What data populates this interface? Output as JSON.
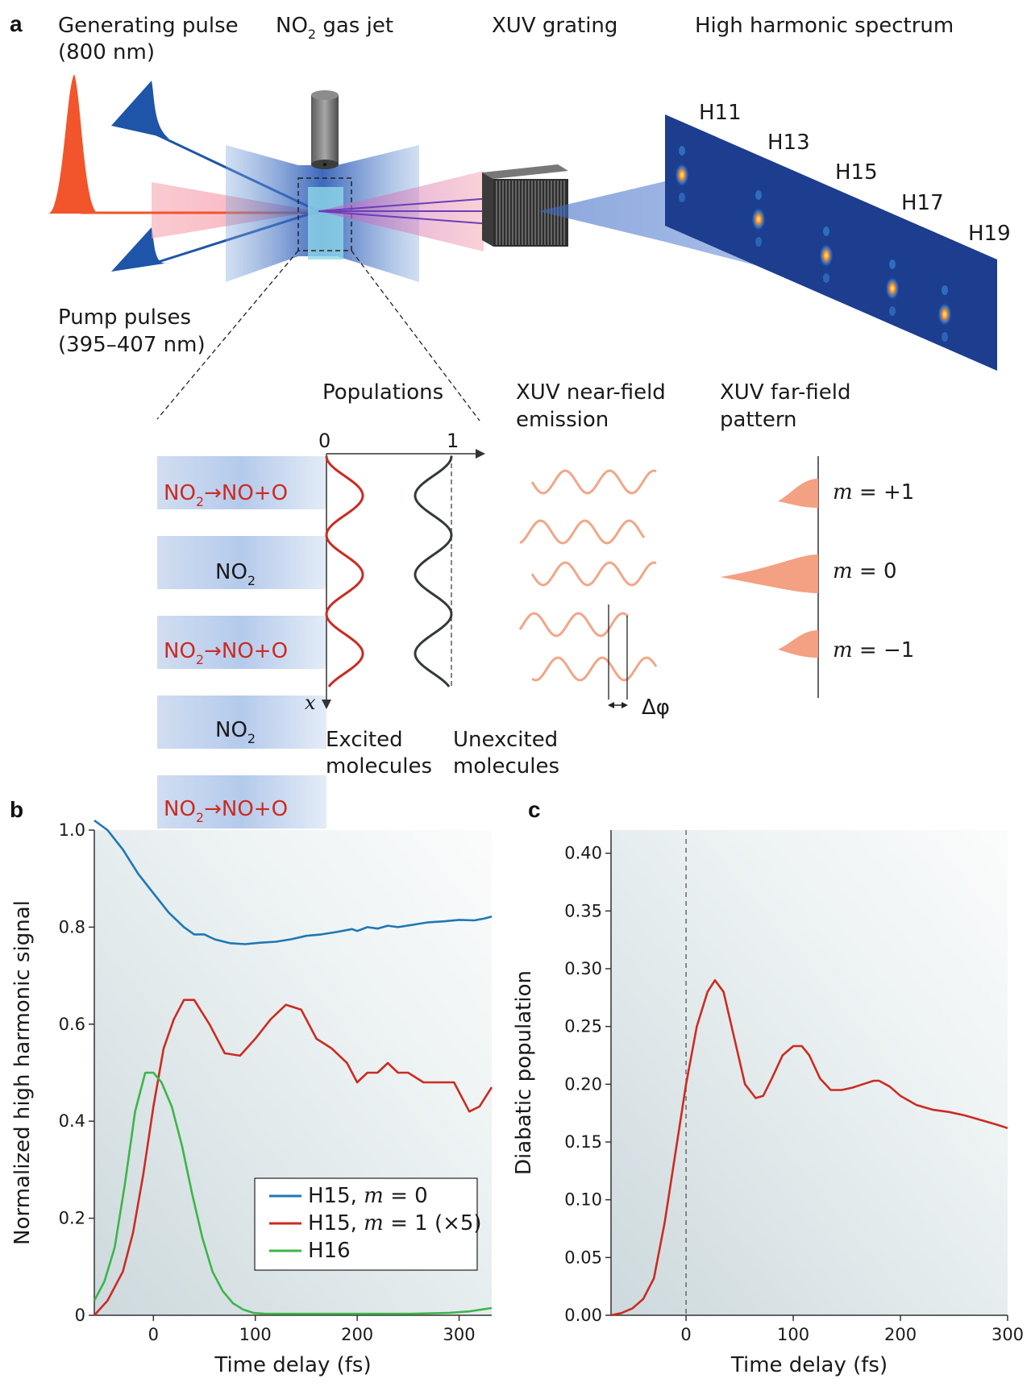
{
  "panel_a": {
    "label": "a",
    "header": {
      "generating_pulse": "Generating pulse",
      "generating_wavelength": "(800 nm)",
      "gas_jet": "NO",
      "gas_jet_sub": "2",
      "gas_jet_rest": " gas jet",
      "grating": "XUV grating",
      "spectrum": "High harmonic spectrum"
    },
    "pump": {
      "label": "Pump pulses",
      "wavelength": "(395–407 nm)"
    },
    "harmonics": [
      "H11",
      "H13",
      "H15",
      "H17",
      "H19"
    ],
    "inset": {
      "populations_title": "Populations",
      "axis_min": "0",
      "axis_max": "1",
      "x_axis": "x",
      "rows": [
        {
          "text": "NO",
          "sub": "2",
          "rest": "→NO+O",
          "excited": true
        },
        {
          "text": "NO",
          "sub": "2",
          "rest": "",
          "excited": false
        },
        {
          "text": "NO",
          "sub": "2",
          "rest": "→NO+O",
          "excited": true
        },
        {
          "text": "NO",
          "sub": "2",
          "rest": "",
          "excited": false
        },
        {
          "text": "NO",
          "sub": "2",
          "rest": "→NO+O",
          "excited": true
        }
      ],
      "excited_label": [
        "Excited",
        "molecules"
      ],
      "unexcited_label": [
        "Unexcited",
        "molecules"
      ],
      "near_field_title": [
        "XUV near-field",
        "emission"
      ],
      "phase_label": "Δφ",
      "far_field_title": [
        "XUV far-field",
        "pattern"
      ],
      "orders": [
        "m = +1",
        "m = 0",
        "m = −1"
      ]
    },
    "colors": {
      "excited": "#cc2b22",
      "unexcited": "#333a3a",
      "wave": "#f2a688",
      "jet_blue": "#1e4fa8",
      "pulse": "#f2552b"
    }
  },
  "chart_data": [
    {
      "panel": "b",
      "type": "line",
      "xlabel": "Time delay (fs)",
      "ylabel": "Normalized high harmonic signal",
      "xlim": [
        -58,
        332
      ],
      "ylim": [
        0,
        1.0
      ],
      "xticks": [
        0,
        100,
        200,
        300
      ],
      "yticks": [
        0,
        0.2,
        0.4,
        0.6,
        0.8,
        1.0
      ],
      "xtick_labels": [
        "0",
        "100",
        "200",
        "300"
      ],
      "ytick_labels": [
        "0",
        "0.2",
        "0.4",
        "0.6",
        "0.8",
        "1.0"
      ],
      "legend_position": "bottom-right",
      "series": [
        {
          "name": "H15, m = 0",
          "color": "#1f77b4",
          "x": [
            -58,
            -45,
            -30,
            -15,
            0,
            15,
            30,
            40,
            50,
            60,
            75,
            90,
            105,
            120,
            135,
            150,
            165,
            180,
            195,
            200,
            210,
            220,
            230,
            240,
            255,
            270,
            285,
            300,
            315,
            325,
            332
          ],
          "y": [
            1.02,
            1.0,
            0.96,
            0.91,
            0.87,
            0.83,
            0.8,
            0.785,
            0.785,
            0.775,
            0.767,
            0.765,
            0.768,
            0.77,
            0.775,
            0.782,
            0.785,
            0.79,
            0.796,
            0.792,
            0.8,
            0.797,
            0.803,
            0.8,
            0.805,
            0.81,
            0.812,
            0.815,
            0.814,
            0.818,
            0.822
          ]
        },
        {
          "name": "H15, m = 1 (×5)",
          "color": "#cc2b22",
          "x": [
            -58,
            -45,
            -30,
            -20,
            -10,
            0,
            10,
            20,
            30,
            40,
            55,
            70,
            85,
            100,
            115,
            130,
            145,
            160,
            175,
            190,
            200,
            210,
            220,
            230,
            240,
            250,
            265,
            280,
            295,
            310,
            320,
            332
          ],
          "y": [
            0,
            0.03,
            0.09,
            0.17,
            0.29,
            0.43,
            0.55,
            0.61,
            0.65,
            0.65,
            0.6,
            0.54,
            0.535,
            0.57,
            0.61,
            0.64,
            0.63,
            0.57,
            0.55,
            0.52,
            0.48,
            0.5,
            0.5,
            0.52,
            0.5,
            0.5,
            0.48,
            0.48,
            0.48,
            0.42,
            0.43,
            0.47
          ]
        },
        {
          "name": "H16",
          "color": "#3cb54a",
          "x": [
            -58,
            -48,
            -38,
            -28,
            -18,
            -8,
            0,
            8,
            18,
            28,
            38,
            48,
            58,
            68,
            78,
            88,
            98,
            110,
            150,
            200,
            250,
            290,
            310,
            332
          ],
          "y": [
            0.03,
            0.07,
            0.14,
            0.27,
            0.42,
            0.5,
            0.5,
            0.48,
            0.43,
            0.35,
            0.25,
            0.16,
            0.09,
            0.05,
            0.025,
            0.012,
            0.005,
            0.003,
            0.003,
            0.003,
            0.003,
            0.005,
            0.008,
            0.015
          ]
        }
      ],
      "legend_labels": [
        {
          "pre": "H15, ",
          "it": "m",
          "post": " = 0"
        },
        {
          "pre": "H15, ",
          "it": "m",
          "post": " = 1 (×5)"
        },
        {
          "pre": "H16",
          "it": "",
          "post": ""
        }
      ]
    },
    {
      "panel": "c",
      "type": "line",
      "xlabel": "Time delay (fs)",
      "ylabel": "Diabatic population",
      "xlim": [
        -70,
        300
      ],
      "ylim": [
        0,
        0.42
      ],
      "xticks": [
        0,
        100,
        200,
        300
      ],
      "yticks": [
        0,
        0.05,
        0.1,
        0.15,
        0.2,
        0.25,
        0.3,
        0.35,
        0.4
      ],
      "xtick_labels": [
        "0",
        "100",
        "200",
        "300"
      ],
      "ytick_labels": [
        "0.00",
        "0.05",
        "0.10",
        "0.15",
        "0.20",
        "0.25",
        "0.30",
        "0.35",
        "0.40"
      ],
      "vline_x": 0,
      "series": [
        {
          "color": "#cc2b22",
          "x": [
            -70,
            -60,
            -50,
            -40,
            -30,
            -20,
            -10,
            0,
            10,
            20,
            27,
            35,
            45,
            55,
            65,
            72,
            80,
            90,
            100,
            108,
            115,
            125,
            135,
            145,
            155,
            165,
            175,
            180,
            190,
            200,
            215,
            230,
            245,
            260,
            275,
            290,
            300
          ],
          "y": [
            0,
            0.002,
            0.006,
            0.014,
            0.032,
            0.08,
            0.14,
            0.2,
            0.25,
            0.28,
            0.29,
            0.28,
            0.24,
            0.2,
            0.188,
            0.19,
            0.205,
            0.225,
            0.233,
            0.233,
            0.225,
            0.205,
            0.195,
            0.195,
            0.197,
            0.2,
            0.203,
            0.203,
            0.198,
            0.19,
            0.182,
            0.178,
            0.176,
            0.173,
            0.169,
            0.165,
            0.162
          ]
        }
      ]
    }
  ]
}
